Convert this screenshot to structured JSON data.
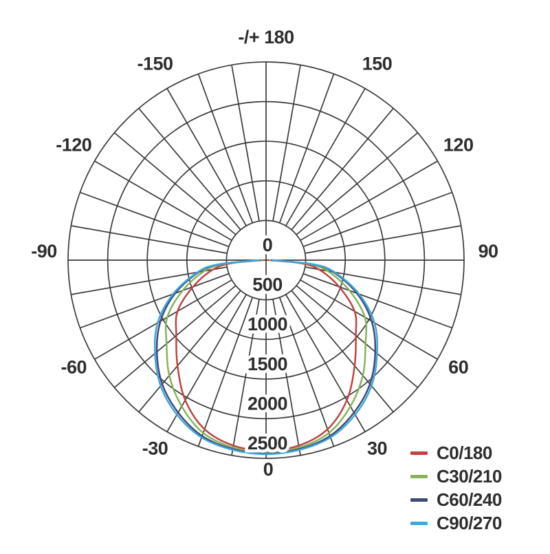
{
  "page": {
    "background": "#ffffff",
    "text_color": "#2d2d2d"
  },
  "chart_data": {
    "type": "line",
    "subtype": "polar-photometric-distribution",
    "title": "",
    "grid": {
      "on": true,
      "color": "#3a3a3a",
      "ring_values": [
        500,
        1000,
        1500,
        2000,
        2500
      ],
      "spoke_step_deg": 10
    },
    "radial_axis": {
      "min": 0,
      "max": 2500,
      "ring_step": 500,
      "tick_labels": [
        "0",
        "500",
        "1000",
        "1500",
        "2000",
        "2500"
      ]
    },
    "angular_axis": {
      "unit": "deg",
      "zero_position": "bottom",
      "labels": [
        {
          "angle": 180,
          "text": "-/+ 180"
        },
        {
          "angle": -150,
          "text": "-150"
        },
        {
          "angle": -120,
          "text": "-120"
        },
        {
          "angle": -90,
          "text": "-90"
        },
        {
          "angle": -60,
          "text": "-60"
        },
        {
          "angle": -30,
          "text": "-30"
        },
        {
          "angle": 0,
          "text": "0"
        },
        {
          "angle": 30,
          "text": "30"
        },
        {
          "angle": 60,
          "text": "60"
        },
        {
          "angle": 90,
          "text": "90"
        },
        {
          "angle": 120,
          "text": "120"
        },
        {
          "angle": 150,
          "text": "150"
        }
      ]
    },
    "angles_deg": [
      -90,
      -85,
      -80,
      -70,
      -60,
      -50,
      -40,
      -30,
      -20,
      -10,
      0,
      10,
      20,
      30,
      40,
      50,
      60,
      70,
      80,
      85,
      90
    ],
    "series": [
      {
        "name": "C0/180",
        "color": "#bf4341",
        "values": [
          30,
          430,
          680,
          980,
          1290,
          1480,
          1740,
          2040,
          2270,
          2375,
          2400,
          2375,
          2270,
          2040,
          1740,
          1480,
          1290,
          980,
          680,
          430,
          30
        ]
      },
      {
        "name": "C30/210",
        "color": "#85b45a",
        "values": [
          50,
          520,
          790,
          1120,
          1440,
          1640,
          1900,
          2130,
          2320,
          2400,
          2425,
          2400,
          2320,
          2130,
          1900,
          1640,
          1440,
          1120,
          790,
          520,
          50
        ]
      },
      {
        "name": "C60/240",
        "color": "#3d4a78",
        "values": [
          70,
          580,
          860,
          1220,
          1540,
          1800,
          2040,
          2220,
          2360,
          2420,
          2440,
          2420,
          2360,
          2220,
          2040,
          1800,
          1540,
          1220,
          860,
          580,
          70
        ]
      },
      {
        "name": "C90/270",
        "color": "#41a6da",
        "values": [
          80,
          600,
          880,
          1250,
          1580,
          1830,
          2070,
          2250,
          2380,
          2430,
          2448,
          2430,
          2380,
          2250,
          2070,
          1830,
          1580,
          1250,
          880,
          600,
          80
        ]
      }
    ],
    "legend": {
      "position": "bottom-right"
    }
  }
}
